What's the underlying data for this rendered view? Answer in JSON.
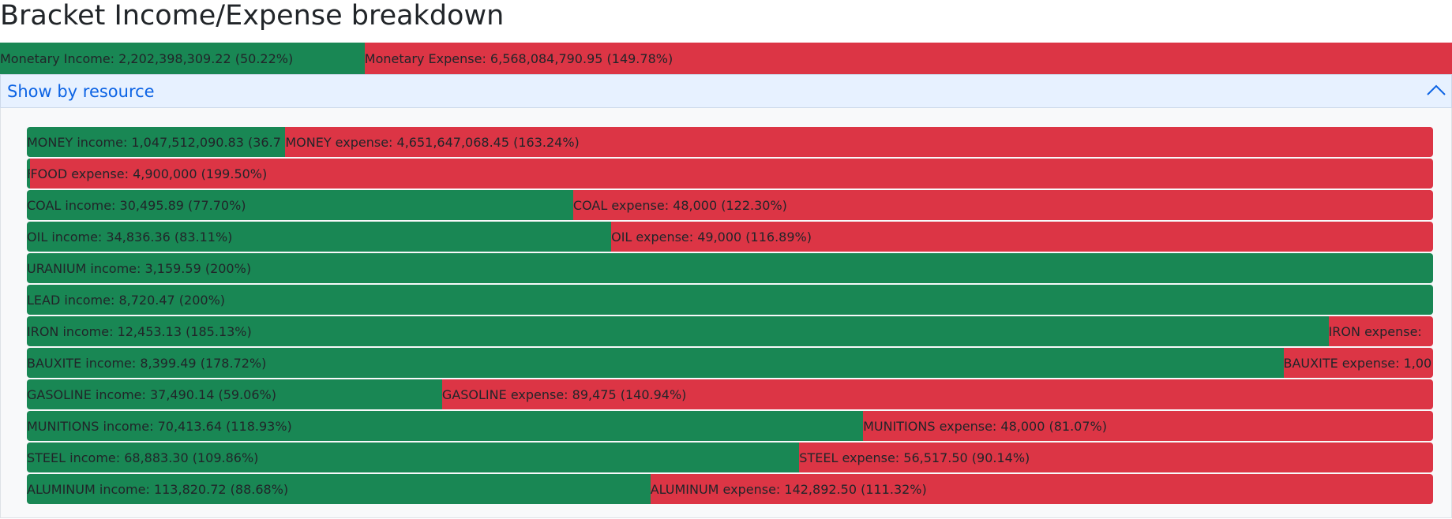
{
  "header": {
    "title": "Bracket Income/Expense breakdown"
  },
  "summary": {
    "income": {
      "label": "Monetary Income: 2,202,398,309.22 (50.22%)",
      "percent": 50.22
    },
    "expense": {
      "label": "Monetary Expense: 6,568,084,790.95 (149.78%)",
      "percent": 149.78
    }
  },
  "accordion": {
    "title": "Show by resource"
  },
  "resources": [
    {
      "income": {
        "label": "MONEY income: 1,047,512,090.83 (36.7",
        "percent": 36.76
      },
      "expense": {
        "label": "MONEY expense: 4,651,647,068.45 (163.24%)",
        "percent": 163.24
      }
    },
    {
      "income": {
        "label": "F",
        "percent": 0.5
      },
      "expense": {
        "label": "FOOD expense: 4,900,000 (199.50%)",
        "percent": 199.5
      }
    },
    {
      "income": {
        "label": "COAL income: 30,495.89 (77.70%)",
        "percent": 77.7
      },
      "expense": {
        "label": "COAL expense: 48,000 (122.30%)",
        "percent": 122.3
      }
    },
    {
      "income": {
        "label": "OIL income: 34,836.36 (83.11%)",
        "percent": 83.11
      },
      "expense": {
        "label": "OIL expense: 49,000 (116.89%)",
        "percent": 116.89
      }
    },
    {
      "income": {
        "label": "URANIUM income: 3,159.59 (200%)",
        "percent": 200
      }
    },
    {
      "income": {
        "label": "LEAD income: 8,720.47 (200%)",
        "percent": 200
      }
    },
    {
      "income": {
        "label": "IRON income: 12,453.13 (185.13%)",
        "percent": 185.13
      },
      "expense": {
        "label": "IRON expense: ",
        "percent": 14.87
      }
    },
    {
      "income": {
        "label": "BAUXITE income: 8,399.49 (178.72%)",
        "percent": 178.72
      },
      "expense": {
        "label": "BAUXITE expense: 1,00",
        "percent": 21.28
      }
    },
    {
      "income": {
        "label": "GASOLINE income: 37,490.14 (59.06%)",
        "percent": 59.06
      },
      "expense": {
        "label": "GASOLINE expense: 89,475 (140.94%)",
        "percent": 140.94
      }
    },
    {
      "income": {
        "label": "MUNITIONS income: 70,413.64 (118.93%)",
        "percent": 118.93
      },
      "expense": {
        "label": "MUNITIONS expense: 48,000 (81.07%)",
        "percent": 81.07
      }
    },
    {
      "income": {
        "label": "STEEL income: 68,883.30 (109.86%)",
        "percent": 109.86
      },
      "expense": {
        "label": "STEEL expense: 56,517.50 (90.14%)",
        "percent": 90.14
      }
    },
    {
      "income": {
        "label": "ALUMINUM income: 113,820.72 (88.68%)",
        "percent": 88.68
      },
      "expense": {
        "label": "ALUMINUM expense: 142,892.50 (111.32%)",
        "percent": 111.32
      }
    }
  ]
}
